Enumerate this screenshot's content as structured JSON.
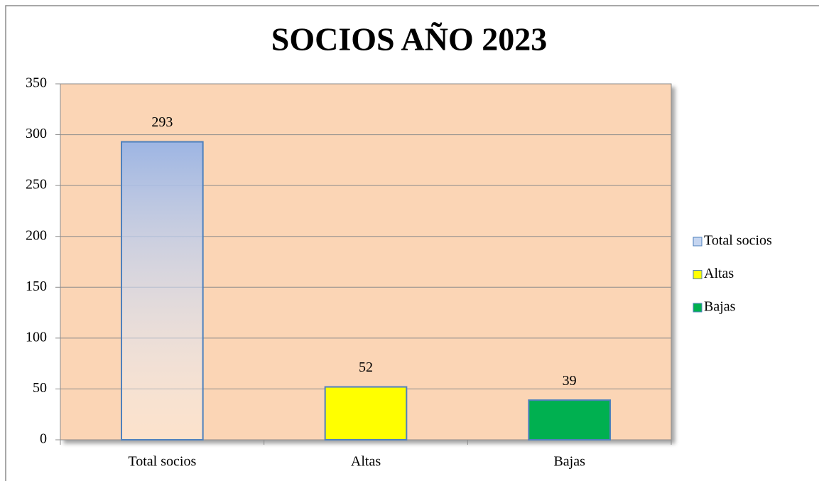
{
  "chart_data": {
    "type": "bar",
    "title": "SOCIOS AÑO 2023",
    "categories": [
      "Total socios",
      "Altas",
      "Bajas"
    ],
    "values": [
      293,
      52,
      39
    ],
    "colors": [
      "#9db5e3",
      "#ffff00",
      "#00b050"
    ],
    "ylim": [
      0,
      350
    ],
    "yticks": [
      0,
      50,
      100,
      150,
      200,
      250,
      300,
      350
    ],
    "grid": true,
    "legend": "right"
  }
}
